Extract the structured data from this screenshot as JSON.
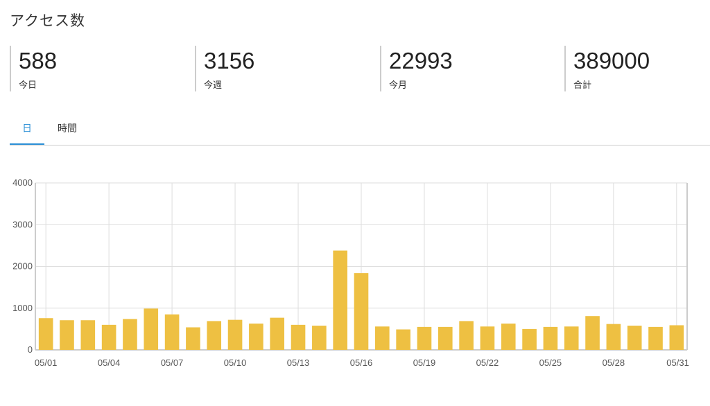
{
  "title": "アクセス数",
  "stats": [
    {
      "value": "588",
      "label": "今日"
    },
    {
      "value": "3156",
      "label": "今週"
    },
    {
      "value": "22993",
      "label": "今月"
    },
    {
      "value": "389000",
      "label": "合計"
    }
  ],
  "tabs": [
    {
      "label": "日",
      "active": true
    },
    {
      "label": "時間",
      "active": false
    }
  ],
  "chart_data": {
    "type": "bar",
    "categories": [
      "05/01",
      "05/02",
      "05/03",
      "05/04",
      "05/05",
      "05/06",
      "05/07",
      "05/08",
      "05/09",
      "05/10",
      "05/11",
      "05/12",
      "05/13",
      "05/14",
      "05/15",
      "05/16",
      "05/17",
      "05/18",
      "05/19",
      "05/20",
      "05/21",
      "05/22",
      "05/23",
      "05/24",
      "05/25",
      "05/26",
      "05/27",
      "05/28",
      "05/29",
      "05/30",
      "05/31"
    ],
    "values": [
      760,
      710,
      710,
      600,
      740,
      990,
      850,
      540,
      690,
      720,
      630,
      770,
      600,
      580,
      2380,
      1840,
      560,
      490,
      550,
      550,
      690,
      560,
      630,
      500,
      550,
      560,
      810,
      620,
      580,
      550,
      590
    ],
    "x_tick_labels": [
      "05/01",
      "05/04",
      "05/07",
      "05/10",
      "05/13",
      "05/16",
      "05/19",
      "05/22",
      "05/25",
      "05/28",
      "05/31"
    ],
    "y_ticks": [
      0,
      1000,
      2000,
      3000,
      4000
    ],
    "ylim": [
      0,
      4000
    ],
    "grid": true,
    "colors": {
      "bar": "#eec042",
      "grid": "#dddddd",
      "accent": "#2a8fd6"
    }
  }
}
